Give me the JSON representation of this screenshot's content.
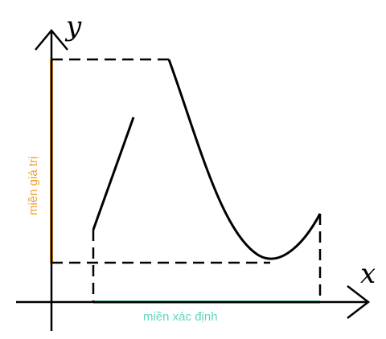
{
  "labels": {
    "y_axis": "y",
    "x_axis": "x",
    "range": "miền giá trị",
    "domain": "miền xác định"
  },
  "colors": {
    "range_accent": "#f0a030",
    "domain_accent": "#5fd6c0",
    "axis": "#000000"
  }
}
